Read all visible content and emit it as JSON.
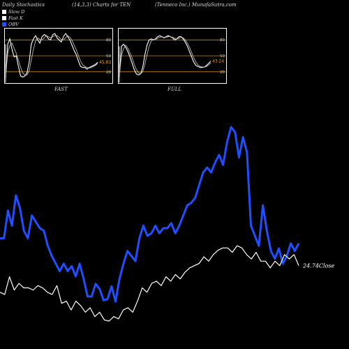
{
  "header": {
    "left": "Daily Stochastics",
    "mid": "(14,3,3) Charts for TEN",
    "right": "(Tenneco  Inc.) MunafaSutra.com"
  },
  "legend": [
    {
      "label": "Slow  D",
      "color": "#ffffff"
    },
    {
      "label": "Fast K",
      "color": "#ffffff"
    },
    {
      "label": "OBV",
      "color": "#1f4fff"
    }
  ],
  "colors": {
    "obv": "#1f4fff",
    "close": "#ffffff",
    "level": "#c98a1a"
  },
  "chart_data": [
    {
      "type": "line",
      "name": "FAST",
      "title": "FAST",
      "ylim": [
        0,
        100
      ],
      "levels": [
        20,
        50,
        80
      ],
      "level_labels": [
        "20",
        "50",
        "80"
      ],
      "last_value_label": "45.83",
      "series": [
        {
          "name": "K",
          "values": [
            8,
            72,
            82,
            62,
            48,
            50,
            30,
            12,
            10,
            12,
            18,
            38,
            72,
            82,
            88,
            80,
            74,
            86,
            90,
            88,
            82,
            80,
            90,
            92,
            84,
            80,
            76,
            86,
            92,
            86,
            80,
            70,
            60,
            52,
            40,
            30,
            28,
            28,
            25,
            28,
            30,
            32,
            34,
            38
          ]
        },
        {
          "name": "D",
          "values": [
            12,
            55,
            70,
            74,
            64,
            55,
            42,
            28,
            18,
            14,
            14,
            22,
            42,
            62,
            78,
            84,
            81,
            80,
            84,
            88,
            86,
            84,
            86,
            88,
            88,
            85,
            81,
            80,
            84,
            88,
            85,
            79,
            70,
            61,
            50,
            40,
            33,
            30,
            28,
            27,
            28,
            30,
            32,
            36
          ]
        }
      ]
    },
    {
      "type": "line",
      "name": "FULL",
      "title": "FULL",
      "ylim": [
        0,
        100
      ],
      "levels": [
        20,
        50,
        80
      ],
      "level_labels": [
        "20",
        "50",
        "80"
      ],
      "last_value_label": "43.24",
      "series": [
        {
          "name": "K",
          "values": [
            10,
            68,
            72,
            66,
            58,
            48,
            36,
            24,
            16,
            14,
            16,
            28,
            52,
            70,
            80,
            82,
            80,
            82,
            86,
            88,
            86,
            84,
            86,
            88,
            86,
            84,
            80,
            82,
            86,
            86,
            82,
            76,
            68,
            58,
            48,
            38,
            32,
            30,
            28,
            28,
            29,
            32,
            36,
            40
          ]
        },
        {
          "name": "D",
          "values": [
            14,
            50,
            64,
            70,
            64,
            56,
            46,
            34,
            24,
            18,
            16,
            20,
            34,
            52,
            68,
            78,
            81,
            81,
            83,
            85,
            86,
            85,
            85,
            86,
            86,
            85,
            83,
            82,
            83,
            85,
            84,
            80,
            74,
            66,
            56,
            46,
            38,
            33,
            30,
            29,
            29,
            30,
            33,
            37
          ]
        }
      ]
    },
    {
      "type": "line",
      "name": "OBV and Close",
      "annotation": "24.74Close",
      "series": [
        {
          "name": "OBV",
          "values": [
            50,
            50,
            72,
            60,
            84,
            74,
            56,
            50,
            68,
            63,
            58,
            56,
            44,
            36,
            30,
            24,
            30,
            24,
            28,
            20,
            30,
            18,
            4,
            4,
            14,
            10,
            1,
            2,
            12,
            0,
            18,
            30,
            40,
            36,
            32,
            50,
            60,
            52,
            54,
            60,
            54,
            58,
            58,
            62,
            54,
            60,
            68,
            76,
            78,
            82,
            92,
            102,
            106,
            102,
            110,
            116,
            108,
            126,
            138,
            134,
            114,
            130,
            118,
            60,
            52,
            44,
            76,
            56,
            40,
            34,
            42,
            30,
            36,
            46,
            40,
            46
          ]
        },
        {
          "name": "Close",
          "values": [
            26,
            24,
            40,
            28,
            34,
            30,
            30,
            28,
            32,
            30,
            26,
            24,
            32,
            16,
            18,
            10,
            18,
            14,
            8,
            12,
            4,
            8,
            1,
            0,
            4,
            2,
            10,
            12,
            8,
            18,
            30,
            26,
            34,
            36,
            32,
            40,
            36,
            42,
            38,
            44,
            48,
            50,
            52,
            58,
            54,
            60,
            64,
            66,
            66,
            62,
            68,
            66,
            60,
            56,
            62,
            54,
            54,
            48,
            54,
            50,
            60,
            56,
            60,
            50
          ]
        }
      ]
    }
  ]
}
